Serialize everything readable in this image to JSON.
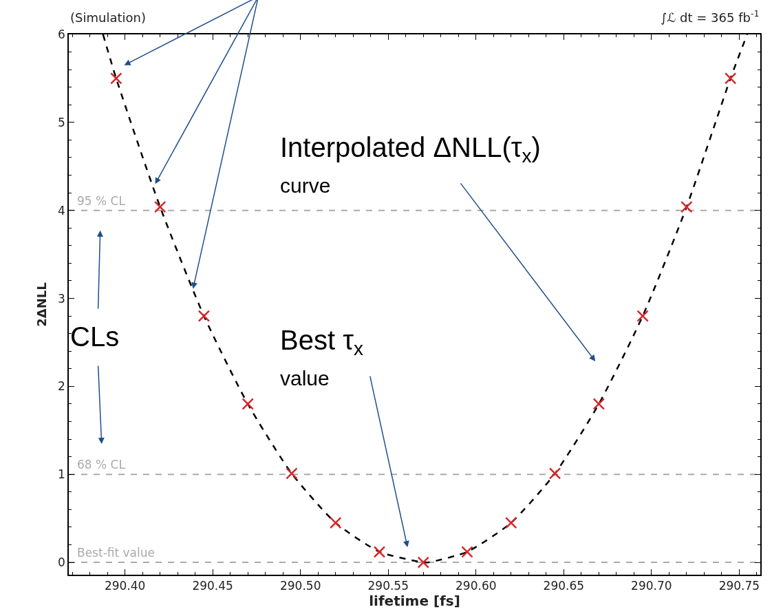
{
  "chart_data": {
    "type": "scatter",
    "xlabel": "lifetime [fs]",
    "ylabel": "2ΔNLL",
    "xlim": [
      290.368,
      290.762
    ],
    "ylim": [
      -0.14,
      6
    ],
    "xticks": [
      {
        "value": 290.4,
        "label": "290.40"
      },
      {
        "value": 290.45,
        "label": "290.45"
      },
      {
        "value": 290.5,
        "label": "290.50"
      },
      {
        "value": 290.55,
        "label": "290.55"
      },
      {
        "value": 290.6,
        "label": "290.60"
      },
      {
        "value": 290.65,
        "label": "290.65"
      },
      {
        "value": 290.7,
        "label": "290.70"
      },
      {
        "value": 290.75,
        "label": "290.75"
      }
    ],
    "yticks": [
      0,
      1,
      2,
      3,
      4,
      5,
      6
    ],
    "grid": false,
    "series": [
      {
        "type": "line",
        "color": "#000000",
        "line_style": "dashed",
        "marker": "none",
        "x": [
          290.3875,
          290.395,
          290.42,
          290.445,
          290.47,
          290.495,
          290.52,
          290.545,
          290.57,
          290.573,
          290.595,
          290.62,
          290.645,
          290.67,
          290.695,
          290.72,
          290.745,
          290.7545
        ],
        "values": [
          6,
          5.5,
          4.04,
          2.8,
          1.8,
          1.01,
          0.45,
          0.12,
          0,
          0,
          0.12,
          0.45,
          1.01,
          1.8,
          2.8,
          4.04,
          5.5,
          6
        ]
      },
      {
        "color": "#d62728",
        "marker": "cross",
        "x": [
          290.395,
          290.42,
          290.445,
          290.47,
          290.495,
          290.52,
          290.545,
          290.57,
          290.595,
          290.62,
          290.645,
          290.67,
          290.695,
          290.72,
          290.745
        ],
        "values": [
          5.5,
          4.04,
          2.8,
          1.8,
          1.01,
          0.45,
          0.12,
          0,
          0.12,
          0.45,
          1.01,
          1.8,
          2.8,
          4.04,
          5.5
        ]
      }
    ],
    "ref_lines": [
      {
        "axis": "y",
        "value": 4,
        "label": "95 % CL",
        "color": "#aaaaaa",
        "line_style": "dashed"
      },
      {
        "axis": "y",
        "value": 1,
        "label": "68 % CL",
        "color": "#aaaaaa",
        "line_style": "dashed"
      },
      {
        "axis": "y",
        "value": 0,
        "label": "Best-fit value",
        "color": "#aaaaaa",
        "line_style": "dashed"
      }
    ],
    "annotations": [
      "(Simulation)",
      "∫ℒ dt = 365 fb$^{-1}$",
      "Interpolated ΔNLL(τ$_{x}$)\ncurve",
      "Best τ$_{x}$\nvalue",
      "CLs"
    ]
  }
}
